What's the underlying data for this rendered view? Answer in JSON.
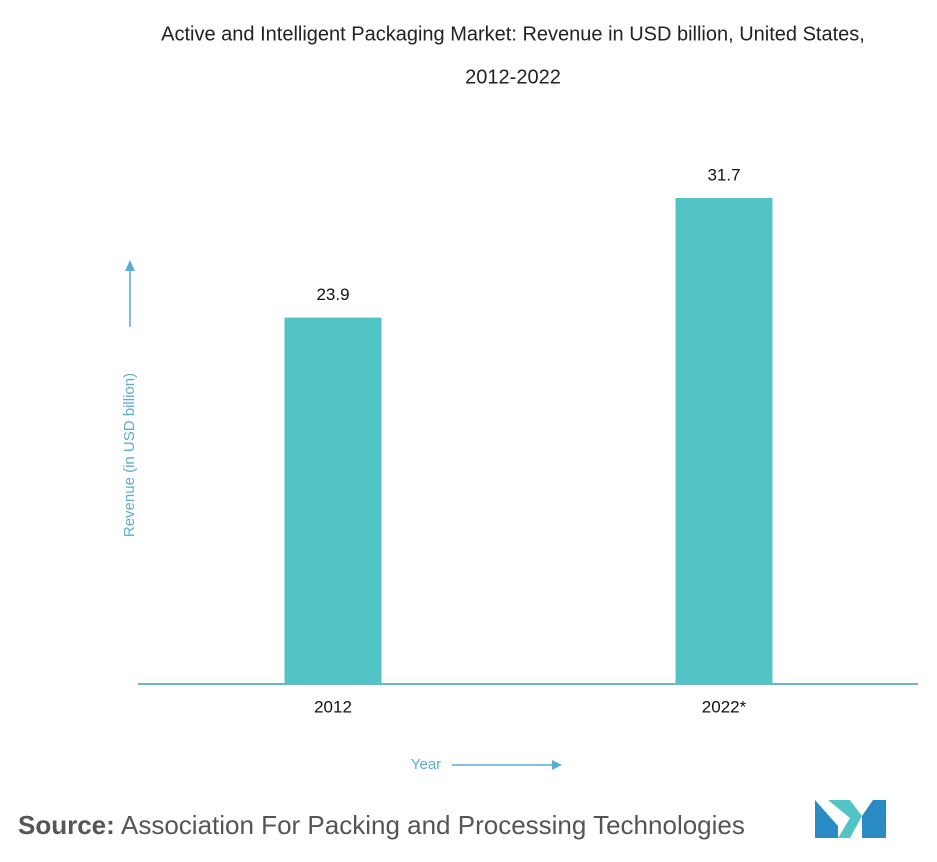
{
  "chart_data": {
    "type": "bar",
    "title": "Active and Intelligent Packaging Market: Revenue in USD billion, United States,",
    "subtitle": "2012-2022",
    "categories": [
      "2012",
      "2022*"
    ],
    "values": [
      23.9,
      31.7
    ],
    "color": "#53c4c6",
    "x_label": "Year",
    "y_label": "Revenue (in USD billion)",
    "source": {
      "label": "Source:",
      "text": "Association For Packing and Processing Technologies"
    }
  }
}
